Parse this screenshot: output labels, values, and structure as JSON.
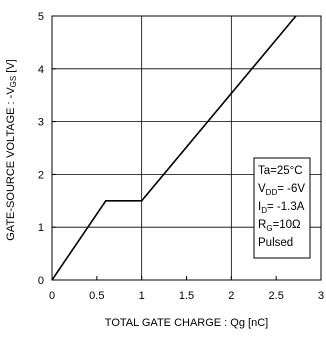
{
  "chart_data": {
    "type": "line",
    "xlabel": "TOTAL GATE CHARGE : Qg  [nC]",
    "ylabel": {
      "prefix": "GATE-SOURCE VOLTAGE : -V",
      "sub": "GS",
      "suffix": " [V]"
    },
    "xlim": [
      0,
      3
    ],
    "ylim": [
      0,
      5
    ],
    "x_ticks": [
      "0",
      "0.5",
      "1",
      "1.5",
      "2",
      "2.5",
      "3"
    ],
    "x_tick_values": [
      0,
      0.5,
      1,
      1.5,
      2,
      2.5,
      3
    ],
    "y_ticks": [
      "0",
      "1",
      "2",
      "3",
      "4",
      "5"
    ],
    "y_tick_values": [
      0,
      1,
      2,
      3,
      4,
      5
    ],
    "grid": true,
    "series": [
      {
        "x": [
          0,
          0.6,
          1.0,
          2.72
        ],
        "y": [
          0,
          1.5,
          1.5,
          5
        ]
      }
    ],
    "legend_box": {
      "lines": [
        {
          "main": "Ta=25°C"
        },
        {
          "main": "V",
          "sub": "DD",
          "rest": "= -6V"
        },
        {
          "main": "I",
          "sub": "D",
          "rest": "= -1.3A"
        },
        {
          "main": "R",
          "sub": "G",
          "rest": "=10Ω"
        },
        {
          "main": "Pulsed"
        }
      ]
    },
    "colors": {
      "line": "#000000",
      "grid": "#000000",
      "background": "#ffffff"
    }
  }
}
